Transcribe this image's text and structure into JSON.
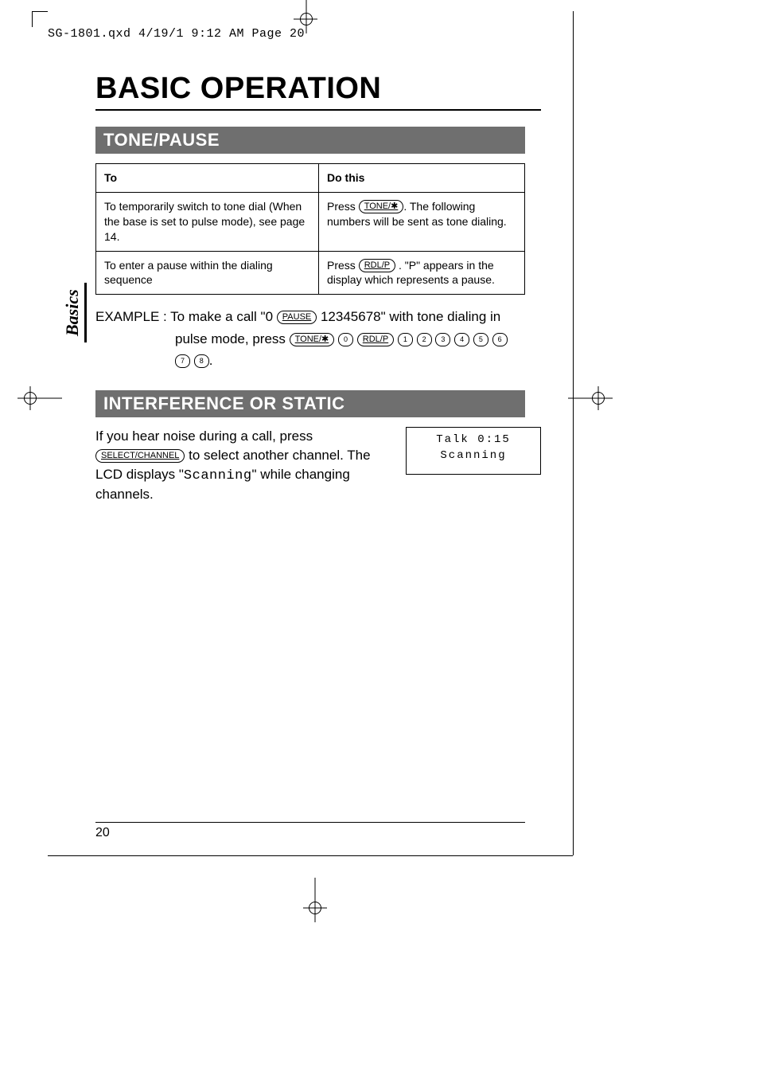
{
  "header": {
    "slug": "SG-1801.qxd  4/19/1 9:12 AM  Page 20"
  },
  "colors": {
    "section_bar_bg": "#6f6f6f",
    "section_bar_fg": "#ffffff",
    "text": "#000000",
    "page_bg": "#ffffff",
    "rule": "#000000"
  },
  "typography": {
    "title_fontsize": 38,
    "section_fontsize": 22,
    "body_fontsize": 17,
    "table_fontsize": 14,
    "mono_family": "Courier New"
  },
  "title": "BASIC OPERATION",
  "side_tab": "Basics",
  "tone_pause": {
    "heading": "TONE/PAUSE",
    "th_to": "To",
    "th_do": "Do this",
    "rows": [
      {
        "to": "To temporarily switch to tone dial (When the base is set to pulse mode), see page 14.",
        "do_pre": "Press ",
        "do_btn": "TONE/✱",
        "do_post": ". The following numbers will be sent as tone dialing."
      },
      {
        "to": "To enter a pause within the dialing sequence",
        "do_pre": "Press ",
        "do_btn": "RDL/P",
        "do_post": " . \"P\" appears in the display which represents a pause."
      }
    ]
  },
  "example": {
    "prefix": "EXAMPLE : To make a call \"0 ",
    "pause_btn": "PAUSE",
    "mid": " 12345678\" with tone dialing in",
    "line2_pre": "pulse mode, press ",
    "seq_first_btn": "TONE/✱",
    "seq_nums_a": [
      "0"
    ],
    "seq_rdlp": "RDL/P",
    "seq_nums_b": [
      "1",
      "2",
      "3",
      "4",
      "5",
      "6"
    ],
    "seq_nums_c": [
      "7",
      "8"
    ],
    "period": "."
  },
  "interference": {
    "heading": "INTERFERENCE OR STATIC",
    "p1_a": "If you hear noise during a call, press ",
    "btn": "SELECT/CHANNEL",
    "p1_b": " to select another channel. The LCD displays \"",
    "mono_word": "Scanning",
    "p1_c": "\" while changing channels.",
    "lcd_line1": "Talk   0:15",
    "lcd_line2": "Scanning"
  },
  "page_number": "20"
}
